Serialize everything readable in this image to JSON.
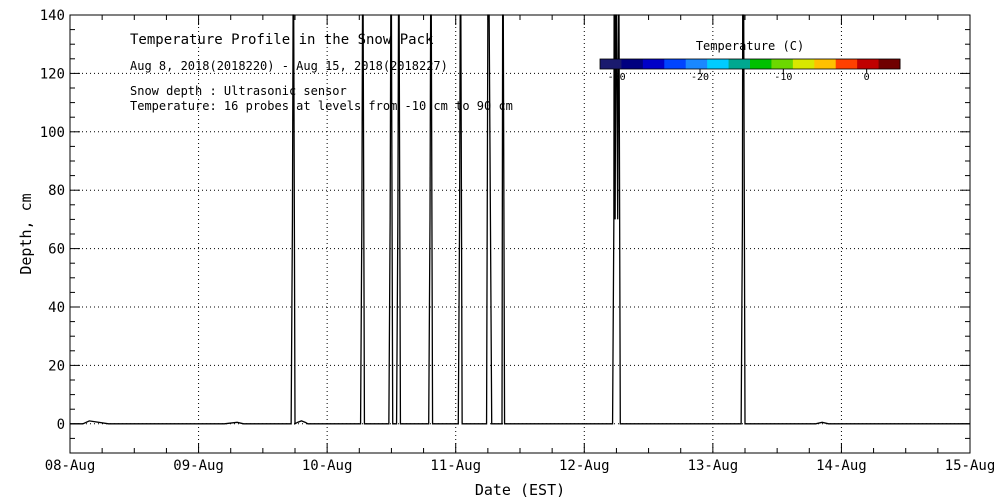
{
  "chart_data": {
    "type": "line",
    "title": "Temperature Profile in the Snow Pack",
    "subtitle": "Aug  8, 2018(2018220) - Aug 15, 2018(2018227)",
    "notes": [
      "Snow depth : Ultrasonic sensor",
      "Temperature: 16 probes at levels from -10 cm to 90 cm"
    ],
    "xlabel": "Date (EST)",
    "ylabel": "Depth, cm",
    "x_ticks": [
      "08-Aug",
      "09-Aug",
      "10-Aug",
      "11-Aug",
      "12-Aug",
      "13-Aug",
      "14-Aug",
      "15-Aug"
    ],
    "xlim_days": [
      0,
      7
    ],
    "ylim": [
      -10,
      140
    ],
    "y_ticks": [
      0,
      20,
      40,
      60,
      80,
      100,
      120,
      140
    ],
    "grid": true,
    "colorbar": {
      "title": "Temperature (C)",
      "range": [
        -32,
        4
      ],
      "tick_values": [
        -30,
        -20,
        -10,
        0
      ],
      "tick_labels": [
        "-30",
        "-20",
        "-10",
        "0"
      ],
      "colors": [
        "#1a1a6e",
        "#000080",
        "#0000c8",
        "#0044ff",
        "#1a88ff",
        "#00ccff",
        "#00a890",
        "#00c000",
        "#6cd800",
        "#d8e800",
        "#ffc000",
        "#ff4000",
        "#c00000",
        "#700000"
      ]
    },
    "series": [
      {
        "name": "",
        "x": [
          0.0,
          0.1,
          0.15,
          0.3,
          0.4,
          1.2,
          1.3,
          1.35,
          1.5,
          1.7,
          1.72,
          1.73,
          1.735,
          1.74,
          1.745,
          1.75,
          1.77,
          1.8,
          1.83,
          1.85,
          1.9,
          2.0,
          2.2,
          2.26,
          2.27,
          2.275,
          2.28,
          2.285,
          2.29,
          2.3,
          2.4,
          2.48,
          2.49,
          2.495,
          2.5,
          2.505,
          2.51,
          2.52,
          2.54,
          2.55,
          2.555,
          2.56,
          2.565,
          2.57,
          2.58,
          2.7,
          2.79,
          2.8,
          2.805,
          2.81,
          2.815,
          2.82,
          2.83,
          2.95,
          3.02,
          3.03,
          3.035,
          3.04,
          3.045,
          3.05,
          3.06,
          3.2,
          3.24,
          3.25,
          3.255,
          3.26,
          3.27,
          3.28,
          3.36,
          3.365,
          3.37,
          3.375,
          3.38,
          3.39,
          3.7,
          4.0,
          4.22,
          4.23,
          4.232,
          4.235,
          4.24,
          4.245,
          4.25,
          4.26,
          4.265,
          4.27,
          4.275,
          4.28,
          4.29,
          4.5,
          5.0,
          5.22,
          5.23,
          5.232,
          5.235,
          5.24,
          5.245,
          5.25,
          5.26,
          5.5,
          5.8,
          5.85,
          5.9,
          6.2,
          6.7,
          7.0
        ],
        "y": [
          0,
          0,
          1,
          0,
          0,
          0,
          0.5,
          0,
          0,
          0,
          0,
          70,
          140,
          140,
          70,
          0,
          0.5,
          1,
          0.5,
          0,
          0,
          0,
          0,
          0,
          70,
          140,
          140,
          70,
          0,
          0,
          0,
          0,
          70,
          140,
          140,
          70,
          0,
          0,
          0,
          70,
          140,
          140,
          70,
          0,
          0,
          0,
          0,
          70,
          140,
          140,
          70,
          0,
          0,
          0,
          0,
          70,
          140,
          140,
          70,
          0,
          0,
          0,
          0,
          140,
          140,
          140,
          70,
          0,
          0,
          140,
          140,
          70,
          0,
          0,
          0,
          0,
          0,
          70,
          140,
          140,
          70,
          140,
          140,
          70,
          140,
          140,
          70,
          0,
          0,
          0,
          0,
          0,
          70,
          140,
          140,
          140,
          70,
          0,
          0,
          0,
          0,
          0.5,
          0,
          0,
          0,
          0
        ]
      }
    ]
  }
}
